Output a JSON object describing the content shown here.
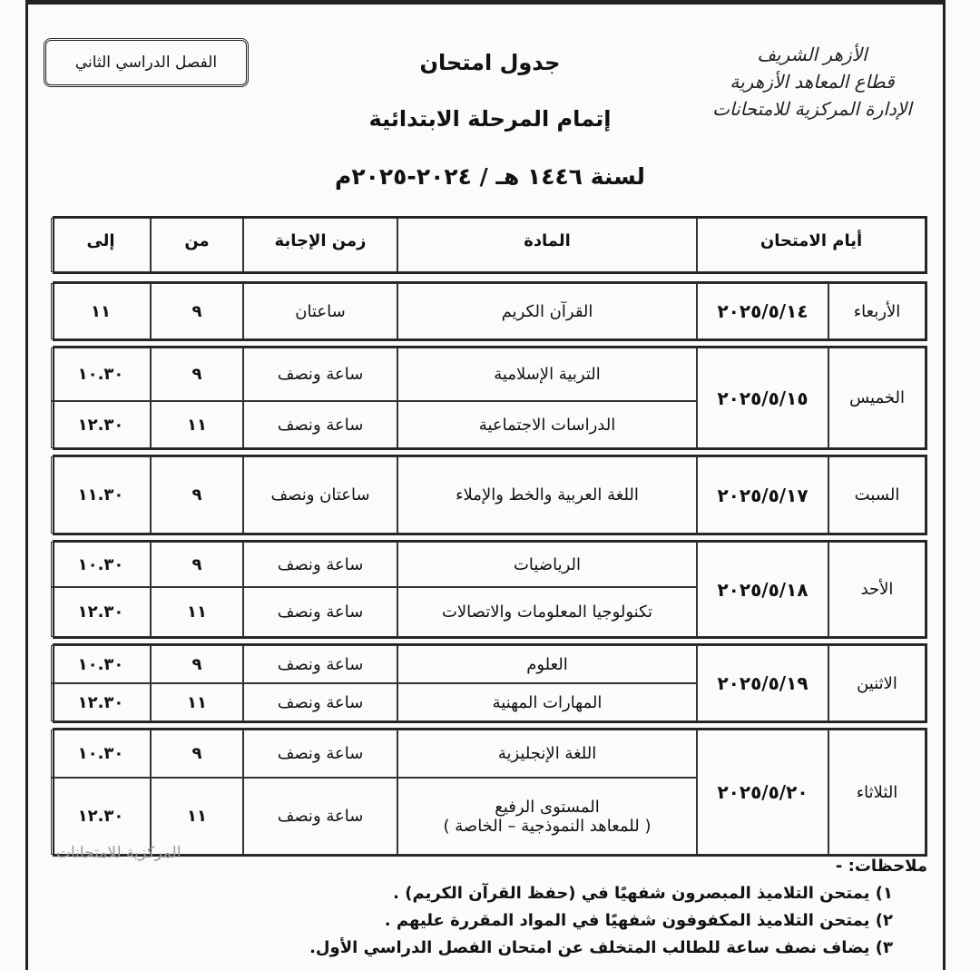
{
  "logo_text": [
    "الأزهر الشريف",
    "قطاع المعاهد الأزهرية",
    "الإدارة المركزية للامتحانات"
  ],
  "term": "الفصل الدراسي الثاني",
  "title": "جدول امتحان",
  "subtitle": "إتمام المرحلة الابتدائية",
  "year": "لسنة ١٤٤٦ هـ / ٢٠٢٤-٢٠٢٥م",
  "headers": {
    "day": "أيام الامتحان",
    "subject": "المادة",
    "duration": "زمن الإجابة",
    "from": "من",
    "to": "إلى"
  },
  "groups": [
    {
      "day": "الأربعاء",
      "date": "٢٠٢٥/٥/١٤",
      "rows": [
        {
          "subject": "القرآن الكريم",
          "duration": "ساعتان",
          "from": "٩",
          "to": "١١"
        }
      ]
    },
    {
      "day": "الخميس",
      "date": "٢٠٢٥/٥/١٥",
      "rows": [
        {
          "subject": "التربية الإسلامية",
          "duration": "ساعة ونصف",
          "from": "٩",
          "to": "١٠.٣٠"
        },
        {
          "subject": "الدراسات الاجتماعية",
          "duration": "ساعة ونصف",
          "from": "١١",
          "to": "١٢.٣٠"
        }
      ]
    },
    {
      "day": "السبت",
      "date": "٢٠٢٥/٥/١٧",
      "rows": [
        {
          "subject": "اللغة العربية والخط والإملاء",
          "duration": "ساعتان ونصف",
          "from": "٩",
          "to": "١١.٣٠"
        }
      ]
    },
    {
      "day": "الأحد",
      "date": "٢٠٢٥/٥/١٨",
      "rows": [
        {
          "subject": "الرياضيات",
          "duration": "ساعة ونصف",
          "from": "٩",
          "to": "١٠.٣٠"
        },
        {
          "subject": "تكنولوجيا المعلومات والاتصالات",
          "duration": "ساعة ونصف",
          "from": "١١",
          "to": "١٢.٣٠"
        }
      ]
    },
    {
      "day": "الاثنين",
      "date": "٢٠٢٥/٥/١٩",
      "rows": [
        {
          "subject": "العلوم",
          "duration": "ساعة ونصف",
          "from": "٩",
          "to": "١٠.٣٠"
        },
        {
          "subject": "المهارات المهنية",
          "duration": "ساعة ونصف",
          "from": "١١",
          "to": "١٢.٣٠"
        }
      ]
    },
    {
      "day": "الثلاثاء",
      "date": "٢٠٢٥/٥/٢٠",
      "rows": [
        {
          "subject": "اللغة الإنجليزية",
          "duration": "ساعة ونصف",
          "from": "٩",
          "to": "١٠.٣٠"
        },
        {
          "subject": "المستوى الرفيع",
          "subject_note": "( للمعاهد النموذجية – الخاصة )",
          "duration": "ساعة ونصف",
          "from": "١١",
          "to": "١٢.٣٠"
        }
      ]
    }
  ],
  "notes": {
    "heading": "ملاحظات: -",
    "items": [
      "١)  يمتحن التلاميذ المبصرون شفهيًا في (حفظ القرآن الكريم) .",
      "٢)  يمتحن التلاميذ المكفوفون شفهيًا في المواد المقررة عليهم .",
      "٣)  يضاف نصف ساعة للطالب المتخلف عن امتحان الفصل الدراسي الأول."
    ]
  },
  "stamp": "المركزية للامتحانات"
}
